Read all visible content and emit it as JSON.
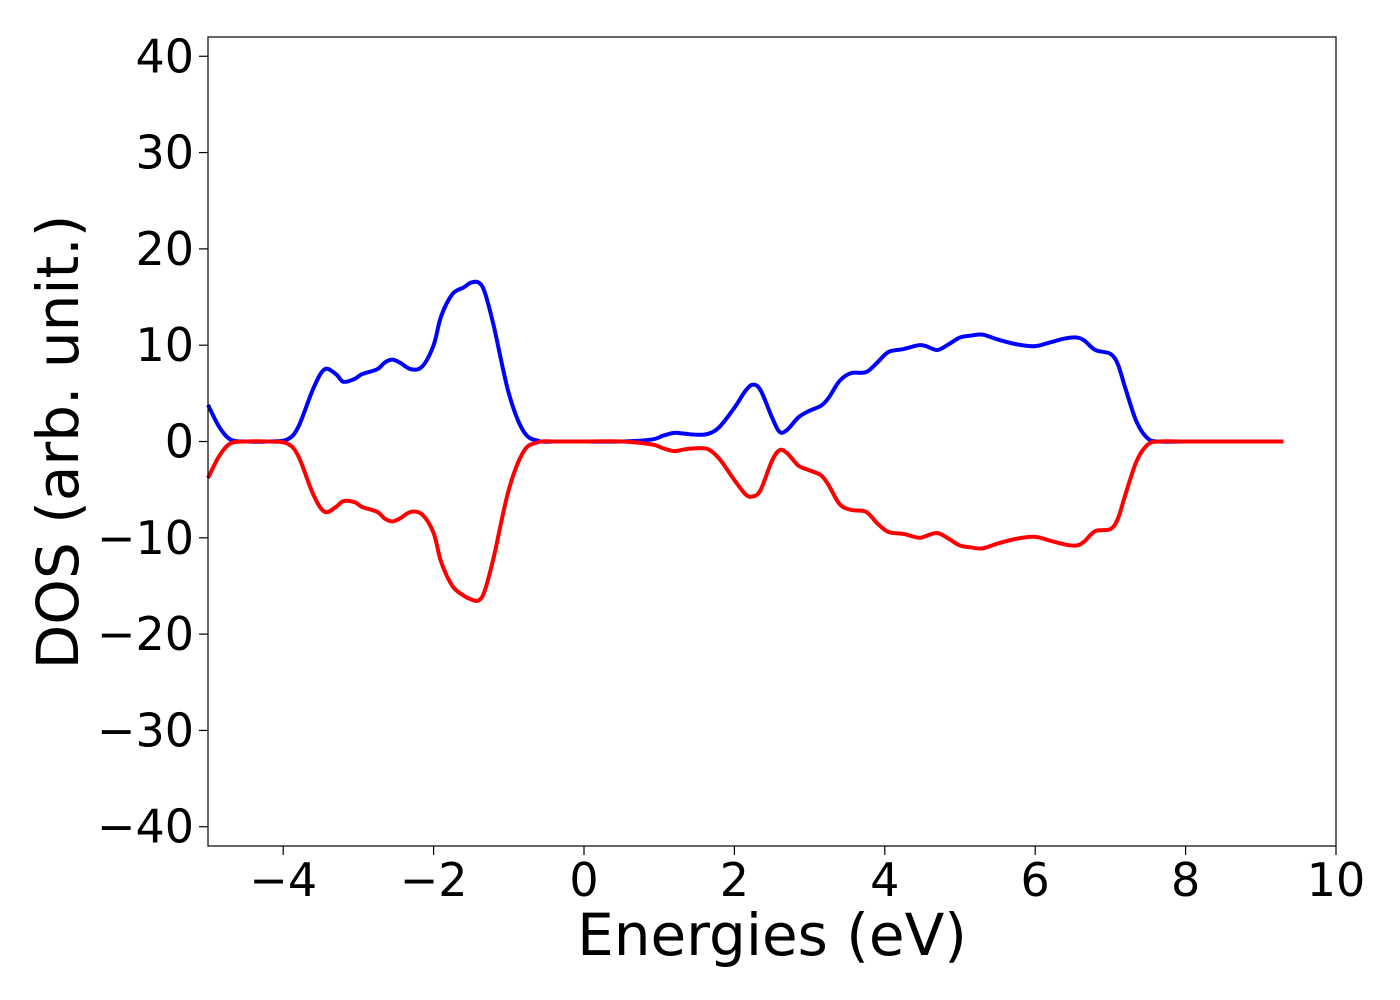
{
  "chart_data": {
    "type": "line",
    "xlabel": "Energies (eV)",
    "ylabel": "DOS (arb. unit.)",
    "xlim": [
      -5,
      10
    ],
    "ylim": [
      -42,
      42
    ],
    "x_ticks": [
      -4,
      -2,
      0,
      2,
      4,
      6,
      8,
      10
    ],
    "y_ticks": [
      -40,
      -30,
      -20,
      -10,
      0,
      10,
      20,
      30,
      40
    ],
    "x_tick_labels": [
      "−4",
      "−2",
      "0",
      "2",
      "4",
      "6",
      "8",
      "10"
    ],
    "y_tick_labels": [
      "−40",
      "−30",
      "−20",
      "−10",
      "0",
      "10",
      "20",
      "30",
      "40"
    ],
    "grid": false,
    "legend": "none",
    "series": [
      {
        "color": "#0000ff",
        "x": [
          -5.0,
          -4.85,
          -4.7,
          -4.5,
          -4.2,
          -3.95,
          -3.8,
          -3.6,
          -3.45,
          -3.3,
          -3.2,
          -3.05,
          -2.95,
          -2.75,
          -2.65,
          -2.55,
          -2.45,
          -2.3,
          -2.15,
          -2.0,
          -1.9,
          -1.75,
          -1.6,
          -1.5,
          -1.4,
          -1.32,
          -1.2,
          -1.0,
          -0.8,
          -0.6,
          -0.4,
          0.0,
          0.5,
          0.9,
          1.05,
          1.2,
          1.35,
          1.5,
          1.65,
          1.8,
          2.0,
          2.15,
          2.25,
          2.35,
          2.5,
          2.6,
          2.7,
          2.85,
          3.0,
          3.15,
          3.25,
          3.4,
          3.55,
          3.75,
          3.9,
          4.05,
          4.25,
          4.45,
          4.55,
          4.7,
          4.85,
          5.0,
          5.15,
          5.3,
          5.5,
          5.75,
          6.0,
          6.2,
          6.4,
          6.55,
          6.65,
          6.8,
          7.0,
          7.1,
          7.2,
          7.35,
          7.5,
          7.65,
          8.0,
          8.5,
          9.3
        ],
        "y": [
          3.8,
          1.5,
          0.2,
          0.0,
          0.0,
          0.2,
          1.5,
          5.5,
          7.5,
          7.0,
          6.2,
          6.5,
          7.0,
          7.5,
          8.2,
          8.5,
          8.2,
          7.5,
          7.8,
          10.0,
          13.0,
          15.3,
          16.0,
          16.5,
          16.5,
          15.5,
          12.0,
          5.0,
          1.0,
          0.05,
          0.0,
          0.0,
          0.0,
          0.2,
          0.6,
          0.9,
          0.8,
          0.7,
          0.8,
          1.5,
          3.5,
          5.3,
          5.9,
          5.3,
          2.5,
          1.0,
          1.2,
          2.5,
          3.2,
          3.7,
          4.5,
          6.3,
          7.1,
          7.2,
          8.2,
          9.3,
          9.6,
          10.0,
          9.9,
          9.5,
          10.1,
          10.8,
          11.0,
          11.1,
          10.6,
          10.1,
          9.9,
          10.3,
          10.7,
          10.8,
          10.5,
          9.5,
          9.1,
          8.0,
          5.5,
          2.0,
          0.3,
          0.0,
          0.0,
          0.0,
          0.0
        ]
      },
      {
        "color": "#ff0000",
        "x": [
          -5.0,
          -4.85,
          -4.7,
          -4.5,
          -4.2,
          -3.95,
          -3.8,
          -3.6,
          -3.45,
          -3.3,
          -3.2,
          -3.05,
          -2.95,
          -2.75,
          -2.65,
          -2.55,
          -2.45,
          -2.3,
          -2.15,
          -2.0,
          -1.9,
          -1.75,
          -1.6,
          -1.5,
          -1.4,
          -1.32,
          -1.2,
          -1.0,
          -0.8,
          -0.6,
          -0.4,
          0.0,
          0.5,
          0.9,
          1.05,
          1.2,
          1.35,
          1.5,
          1.65,
          1.8,
          2.0,
          2.15,
          2.25,
          2.35,
          2.5,
          2.6,
          2.7,
          2.85,
          3.0,
          3.15,
          3.25,
          3.4,
          3.55,
          3.75,
          3.9,
          4.05,
          4.25,
          4.45,
          4.55,
          4.7,
          4.85,
          5.0,
          5.15,
          5.3,
          5.5,
          5.75,
          6.0,
          6.2,
          6.4,
          6.55,
          6.65,
          6.8,
          7.0,
          7.1,
          7.2,
          7.35,
          7.5,
          7.65,
          8.0,
          8.5,
          9.3
        ],
        "y": [
          -3.8,
          -1.5,
          -0.2,
          0.0,
          0.0,
          -0.2,
          -1.5,
          -5.5,
          -7.3,
          -6.8,
          -6.2,
          -6.3,
          -6.8,
          -7.3,
          -8.0,
          -8.3,
          -8.0,
          -7.3,
          -7.6,
          -9.5,
          -12.5,
          -15.0,
          -16.0,
          -16.4,
          -16.5,
          -15.5,
          -12.0,
          -5.0,
          -1.0,
          -0.05,
          0.0,
          0.0,
          0.0,
          -0.3,
          -0.7,
          -1.0,
          -0.8,
          -0.7,
          -0.8,
          -1.8,
          -4.0,
          -5.5,
          -5.7,
          -5.0,
          -2.0,
          -0.9,
          -1.2,
          -2.5,
          -3.0,
          -3.5,
          -4.5,
          -6.5,
          -7.1,
          -7.3,
          -8.5,
          -9.4,
          -9.6,
          -10.0,
          -9.8,
          -9.5,
          -10.1,
          -10.8,
          -11.0,
          -11.1,
          -10.6,
          -10.1,
          -9.9,
          -10.3,
          -10.7,
          -10.8,
          -10.4,
          -9.3,
          -9.1,
          -8.0,
          -5.5,
          -2.0,
          -0.3,
          0.0,
          0.0,
          0.0,
          0.0
        ]
      }
    ]
  }
}
